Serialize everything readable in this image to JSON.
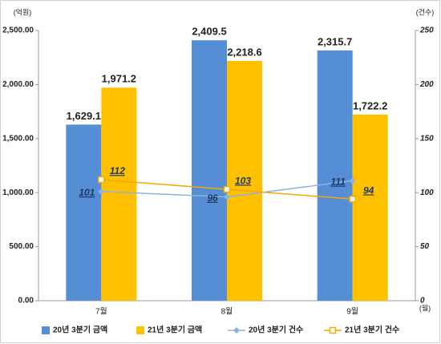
{
  "chart_data": {
    "type": "bar",
    "y_label": "(억원)",
    "y2_label": "(건수)",
    "x_label": "(월)",
    "categories": [
      "7월",
      "8월",
      "9월"
    ],
    "series": [
      {
        "name": "20년 3분기 금액",
        "type": "bar",
        "color": "#558ed5",
        "values": [
          1629.1,
          2409.5,
          2315.7
        ],
        "value_labels": [
          "1,629.1",
          "2,409.5",
          "2,315.7"
        ]
      },
      {
        "name": "21년 3분기 금액",
        "type": "bar",
        "color": "#ffc000",
        "values": [
          1971.2,
          2218.6,
          1722.2
        ],
        "value_labels": [
          "1,971.2",
          "2,218.6",
          "1,722.2"
        ]
      },
      {
        "name": "20년 3분기 건수",
        "type": "line",
        "axis": "y2",
        "color": "#8db3e2",
        "values": [
          101,
          96,
          111
        ]
      },
      {
        "name": "21년 3분기 건수",
        "type": "line",
        "axis": "y2",
        "color": "#f2a900",
        "values": [
          112,
          103,
          94
        ]
      }
    ],
    "ylim": [
      0,
      2500
    ],
    "yticks": [
      {
        "value": 0,
        "label": "0.00"
      },
      {
        "value": 500,
        "label": "500.00"
      },
      {
        "value": 1000,
        "label": "1,000.00"
      },
      {
        "value": 1500,
        "label": "1,500.00"
      },
      {
        "value": 2000,
        "label": "2,000.00"
      },
      {
        "value": 2500,
        "label": "2,500.00"
      }
    ],
    "y2lim": [
      0,
      250
    ],
    "y2ticks": [
      0,
      50,
      100,
      150,
      200,
      250
    ],
    "grid": false,
    "legend": "bottom"
  }
}
